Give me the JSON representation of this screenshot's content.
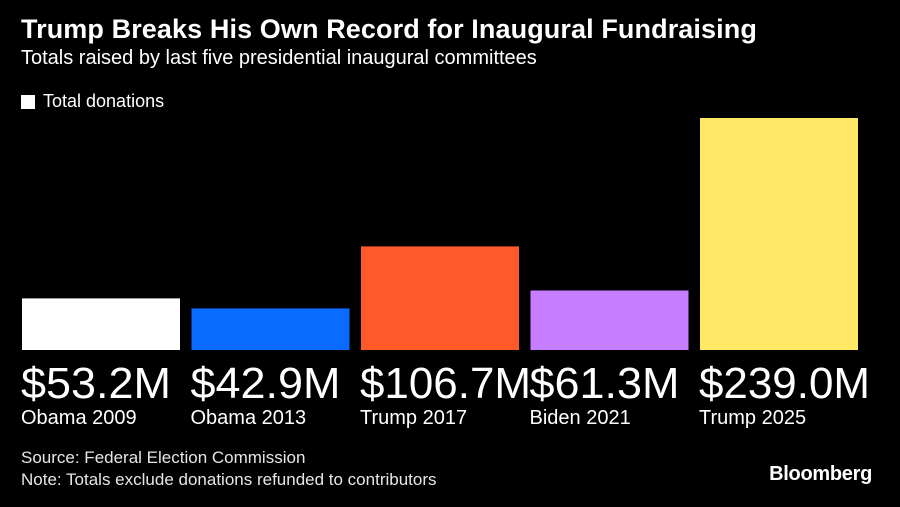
{
  "header": {
    "title": "Trump Breaks His Own Record for Inaugural Fundraising",
    "subtitle": "Totals raised by last five presidential inaugural committees"
  },
  "legend": {
    "label": "Total donations"
  },
  "chart_data": {
    "type": "bar",
    "title": "Trump Breaks His Own Record for Inaugural Fundraising",
    "subtitle": "Totals raised by last five presidential inaugural committees",
    "categories": [
      "Obama 2009",
      "Obama 2013",
      "Trump 2017",
      "Biden 2021",
      "Trump 2025"
    ],
    "values": [
      53.2,
      42.9,
      106.7,
      61.3,
      239.0
    ],
    "value_labels": [
      "$53.2M",
      "$42.9M",
      "$106.7M",
      "$61.3M",
      "$239.0M"
    ],
    "colors": [
      "#ffffff",
      "#0a6cff",
      "#ff5a28",
      "#c77dff",
      "#ffe866"
    ],
    "series": [
      {
        "name": "Total donations",
        "values": [
          53.2,
          42.9,
          106.7,
          61.3,
          239.0
        ]
      }
    ],
    "ylim": [
      0,
      239.0
    ],
    "grid": false,
    "legend_position": "top-left"
  },
  "footer": {
    "source": "Source: Federal Election Commission",
    "note": "Note: Totals exclude donations refunded to contributors",
    "brand": "Bloomberg"
  }
}
